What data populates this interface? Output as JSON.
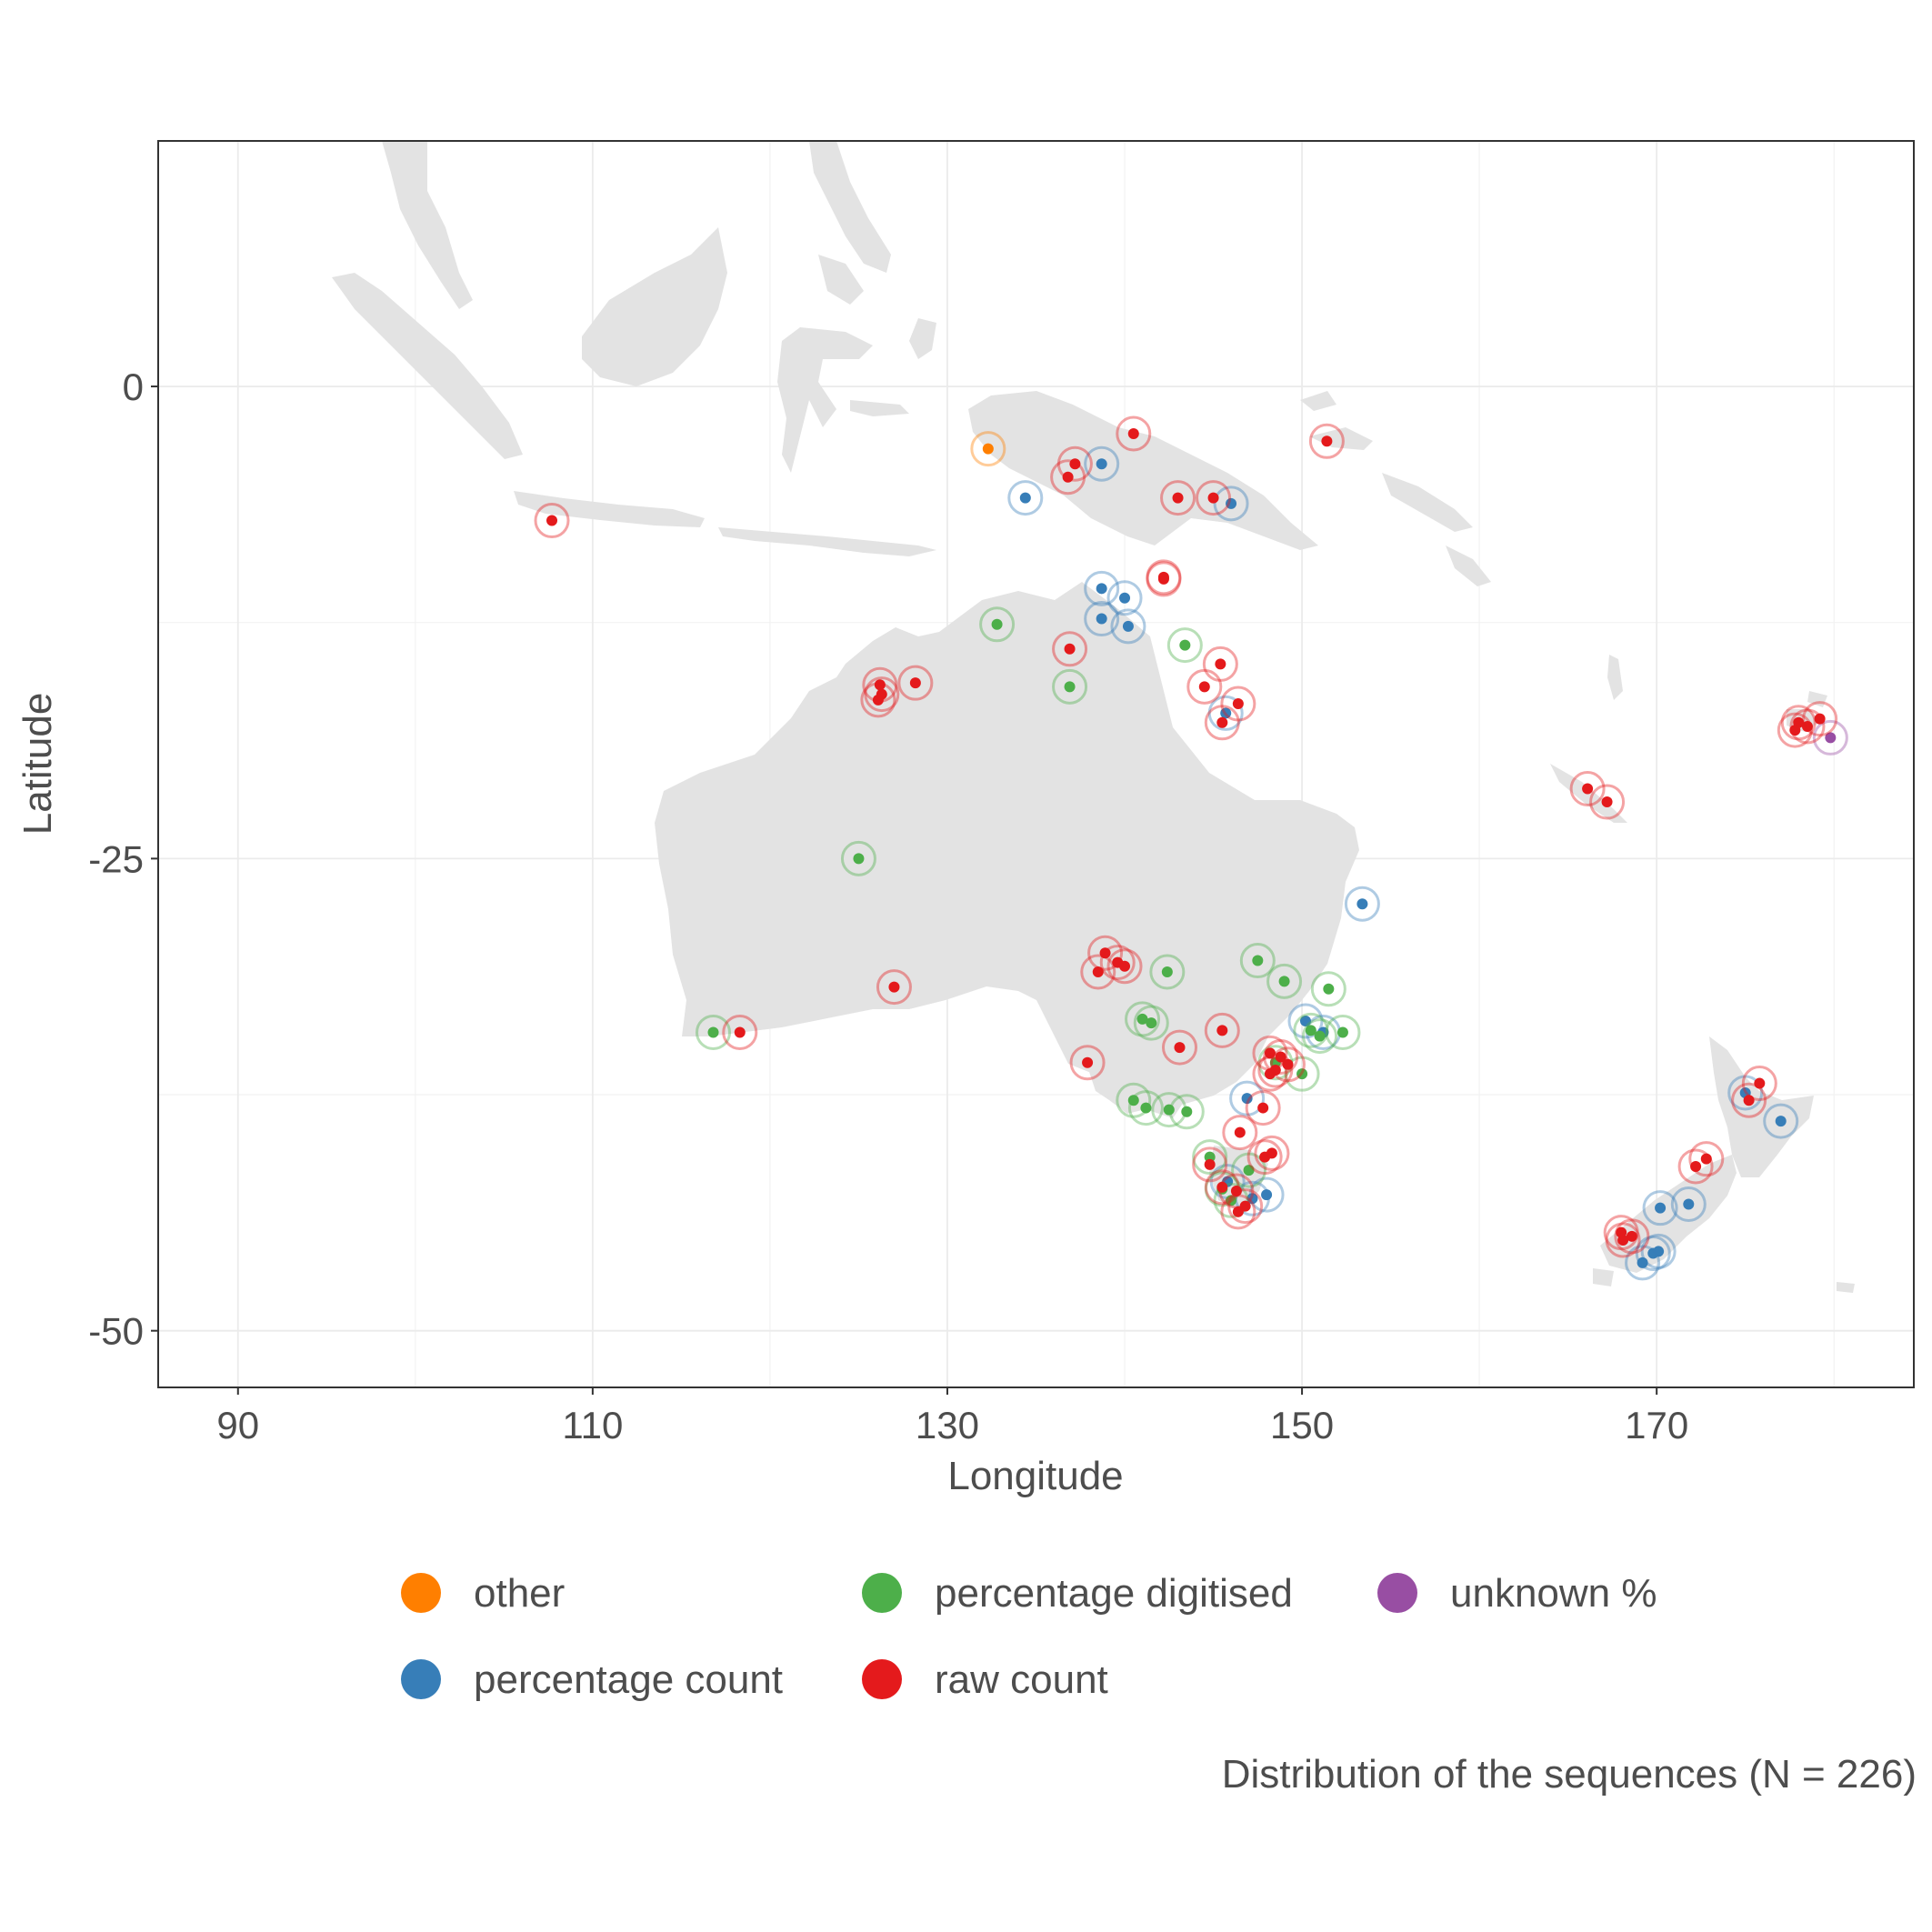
{
  "chart_data": {
    "type": "scatter",
    "xlabel": "Longitude",
    "ylabel": "Latitude",
    "xlim": [
      85.5,
      184.5
    ],
    "ylim": [
      -53,
      13
    ],
    "x_ticks": [
      90,
      110,
      130,
      150,
      170
    ],
    "y_ticks": [
      0,
      -25,
      -50
    ],
    "x_tick_labels": [
      "90",
      "110",
      "130",
      "150",
      "170"
    ],
    "y_tick_labels": [
      "0",
      "-25",
      "-50"
    ],
    "grid": true,
    "legend_position": "bottom",
    "caption": "Distribution of the sequences (N = 226)",
    "categories": [
      {
        "name": "other",
        "color": "#FF7F00"
      },
      {
        "name": "percentage digitised",
        "color": "#4DAF4A"
      },
      {
        "name": "unknown %",
        "color": "#984EA3"
      },
      {
        "name": "percentage count",
        "color": "#377EB8"
      },
      {
        "name": "raw count",
        "color": "#E41A1C"
      }
    ],
    "series": [
      {
        "name": "other",
        "points": [
          [
            132.3,
            -3.3
          ]
        ]
      },
      {
        "name": "percentage count",
        "points": [
          [
            134.4,
            -5.9
          ],
          [
            138.7,
            -4.1
          ],
          [
            138.7,
            -10.7
          ],
          [
            140.0,
            -11.2
          ],
          [
            138.7,
            -12.3
          ],
          [
            140.2,
            -12.7
          ],
          [
            146.0,
            -6.2
          ],
          [
            145.7,
            -17.3
          ],
          [
            153.4,
            -27.4
          ],
          [
            150.2,
            -33.6
          ],
          [
            151.2,
            -34.2
          ],
          [
            146.9,
            -37.7
          ],
          [
            145.8,
            -42.1
          ],
          [
            148.0,
            -42.8
          ],
          [
            147.2,
            -43.0
          ],
          [
            175.0,
            -37.4
          ],
          [
            177.0,
            -38.9
          ],
          [
            170.2,
            -43.5
          ],
          [
            171.8,
            -43.3
          ],
          [
            169.8,
            -45.9
          ],
          [
            170.1,
            -45.8
          ],
          [
            169.2,
            -46.4
          ]
        ]
      },
      {
        "name": "percentage digitised",
        "points": [
          [
            132.8,
            -12.6
          ],
          [
            143.4,
            -13.7
          ],
          [
            136.9,
            -15.9
          ],
          [
            125.0,
            -25.0
          ],
          [
            116.8,
            -34.2
          ],
          [
            142.4,
            -31.0
          ],
          [
            147.5,
            -30.4
          ],
          [
            149.0,
            -31.5
          ],
          [
            151.5,
            -31.9
          ],
          [
            141.0,
            -33.5
          ],
          [
            141.5,
            -33.7
          ],
          [
            150.5,
            -34.1
          ],
          [
            151.0,
            -34.4
          ],
          [
            152.3,
            -34.2
          ],
          [
            148.5,
            -35.8
          ],
          [
            150.0,
            -36.4
          ],
          [
            140.5,
            -37.8
          ],
          [
            141.2,
            -38.2
          ],
          [
            142.5,
            -38.3
          ],
          [
            143.5,
            -38.4
          ],
          [
            144.8,
            -40.8
          ],
          [
            145.5,
            -42.5
          ],
          [
            147.0,
            -41.5
          ],
          [
            146.0,
            -43.1
          ]
        ]
      },
      {
        "name": "unknown %",
        "points": [
          [
            179.8,
            -18.6
          ]
        ]
      },
      {
        "name": "raw count",
        "points": [
          [
            107.7,
            -7.1
          ],
          [
            140.5,
            -2.5
          ],
          [
            151.4,
            -2.9
          ],
          [
            137.2,
            -4.1
          ],
          [
            136.8,
            -4.8
          ],
          [
            143.0,
            -5.9
          ],
          [
            145.0,
            -5.9
          ],
          [
            142.2,
            -10.2
          ],
          [
            142.2,
            -10.1
          ],
          [
            136.9,
            -13.9
          ],
          [
            145.4,
            -14.7
          ],
          [
            144.5,
            -15.9
          ],
          [
            126.2,
            -15.8
          ],
          [
            126.3,
            -16.3
          ],
          [
            126.1,
            -16.6
          ],
          [
            128.2,
            -15.7
          ],
          [
            146.4,
            -16.8
          ],
          [
            145.5,
            -17.8
          ],
          [
            138.9,
            -30.0
          ],
          [
            139.6,
            -30.5
          ],
          [
            140.0,
            -30.7
          ],
          [
            138.5,
            -31.0
          ],
          [
            127.0,
            -31.8
          ],
          [
            118.3,
            -34.2
          ],
          [
            143.1,
            -35.0
          ],
          [
            145.5,
            -34.1
          ],
          [
            137.9,
            -35.8
          ],
          [
            148.2,
            -35.3
          ],
          [
            148.8,
            -35.5
          ],
          [
            148.2,
            -36.4
          ],
          [
            148.5,
            -36.2
          ],
          [
            149.2,
            -35.9
          ],
          [
            147.8,
            -38.2
          ],
          [
            146.5,
            -39.5
          ],
          [
            147.9,
            -40.8
          ],
          [
            148.3,
            -40.6
          ],
          [
            144.8,
            -41.2
          ],
          [
            145.5,
            -42.4
          ],
          [
            146.3,
            -42.6
          ],
          [
            146.8,
            -43.4
          ],
          [
            146.4,
            -43.7
          ],
          [
            166.1,
            -21.3
          ],
          [
            167.2,
            -22.0
          ],
          [
            178.0,
            -17.8
          ],
          [
            178.5,
            -18.0
          ],
          [
            179.2,
            -17.6
          ],
          [
            177.8,
            -18.2
          ],
          [
            175.8,
            -36.9
          ],
          [
            175.2,
            -37.8
          ],
          [
            172.2,
            -41.3
          ],
          [
            172.8,
            -40.9
          ],
          [
            168.1,
            -45.2
          ],
          [
            168.6,
            -45.0
          ],
          [
            168.0,
            -44.8
          ]
        ]
      }
    ]
  }
}
